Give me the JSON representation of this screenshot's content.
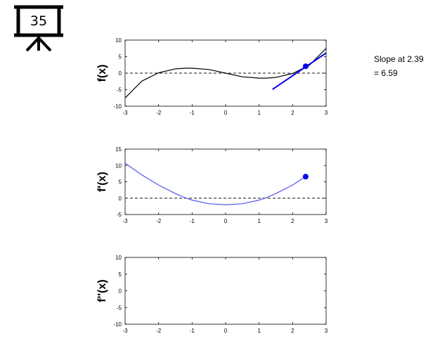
{
  "badge": {
    "number": "35",
    "icon": "presentation-board-icon"
  },
  "annotation": {
    "line1": "Slope at 2.39",
    "line2": "= 6.59"
  },
  "chart_data": [
    {
      "type": "line",
      "ylabel": "f(x)",
      "xlim": [
        -3,
        3
      ],
      "ylim": [
        -10,
        10
      ],
      "xticks": [
        -3,
        -2,
        -1,
        0,
        1,
        2,
        3
      ],
      "yticks": [
        -10,
        -5,
        0,
        5,
        10
      ],
      "series": [
        {
          "color": "#000000",
          "x": [
            -3,
            -2.5,
            -2,
            -1.5,
            -1.2,
            -1,
            -0.5,
            0,
            0.5,
            1,
            1.2,
            1.5,
            2,
            2.5,
            3
          ],
          "y": [
            -7.5,
            -2.4,
            0.1,
            1.3,
            1.5,
            1.5,
            1.1,
            0,
            -1.1,
            -1.5,
            -1.5,
            -1.3,
            -0.1,
            2.4,
            7.5
          ]
        }
      ],
      "tangent": {
        "x": [
          1.4,
          3
        ],
        "y": [
          -4.9,
          6.1
        ],
        "color": "#0000ee"
      },
      "point": {
        "x": 2.39,
        "y": 2.08,
        "color": "#0000ee"
      },
      "zero_line": true
    },
    {
      "type": "line",
      "ylabel": "f'(x)",
      "xlim": [
        -3,
        3
      ],
      "ylim": [
        -5,
        15
      ],
      "xticks": [
        -3,
        -2,
        -1,
        0,
        1,
        2,
        3
      ],
      "yticks": [
        -5,
        0,
        5,
        10,
        15
      ],
      "series": [
        {
          "color": "#5555ee",
          "x": [
            -3,
            -2.5,
            -2,
            -1.5,
            -1.2,
            -1,
            -0.5,
            0,
            0.5,
            1,
            1.2,
            1.5,
            2,
            2.39
          ],
          "y": [
            10.7,
            7.1,
            4,
            1.4,
            0.1,
            -0.6,
            -1.7,
            -2,
            -1.7,
            -0.6,
            0.1,
            1.4,
            4,
            6.59
          ]
        }
      ],
      "point": {
        "x": 2.39,
        "y": 6.59,
        "color": "#0000ee"
      },
      "zero_line": true
    },
    {
      "type": "line",
      "ylabel": "f''(x)",
      "xlim": [
        -3,
        3
      ],
      "ylim": [
        -10,
        10
      ],
      "xticks": [
        -3,
        -2,
        -1,
        0,
        1,
        2,
        3
      ],
      "yticks": [
        -10,
        -5,
        0,
        5,
        10
      ],
      "series": [],
      "zero_line": false
    }
  ]
}
